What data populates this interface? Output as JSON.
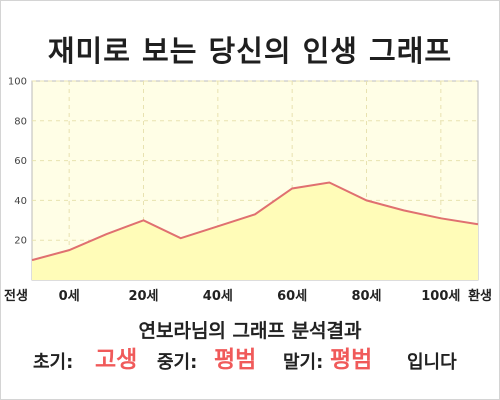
{
  "title": "재미로 보는 당신의 인생 그래프",
  "chart_data": {
    "type": "area",
    "x": [
      -10,
      0,
      10,
      20,
      30,
      40,
      50,
      60,
      70,
      80,
      90,
      100,
      110
    ],
    "values": [
      10,
      15,
      23,
      30,
      21,
      27,
      33,
      46,
      49,
      40,
      35,
      31,
      28
    ],
    "xlim": [
      -10,
      110
    ],
    "ylim": [
      0,
      100
    ],
    "yticks": [
      20,
      40,
      60,
      80,
      100
    ],
    "xticks": [
      {
        "x": -10,
        "label": "전생"
      },
      {
        "x": 0,
        "label": "0세"
      },
      {
        "x": 20,
        "label": "20세"
      },
      {
        "x": 40,
        "label": "40세"
      },
      {
        "x": 60,
        "label": "60세"
      },
      {
        "x": 80,
        "label": "80세"
      },
      {
        "x": 100,
        "label": "100세"
      },
      {
        "x": 110,
        "label": "환생"
      }
    ],
    "grid": true,
    "colors": {
      "line": "#e07070",
      "fill": "#fffcb8",
      "plot_bg": "#fffee6",
      "grid": "#e8e2b0"
    }
  },
  "result": {
    "title": "연보라님의 그래프 분석결과",
    "early_label": "초기:",
    "early_value": "고생",
    "middle_label": "중기:",
    "middle_value": "평범",
    "late_label": "말기:",
    "late_value": "평범",
    "ending": "입니다"
  },
  "accent_color": "#f05a5a"
}
